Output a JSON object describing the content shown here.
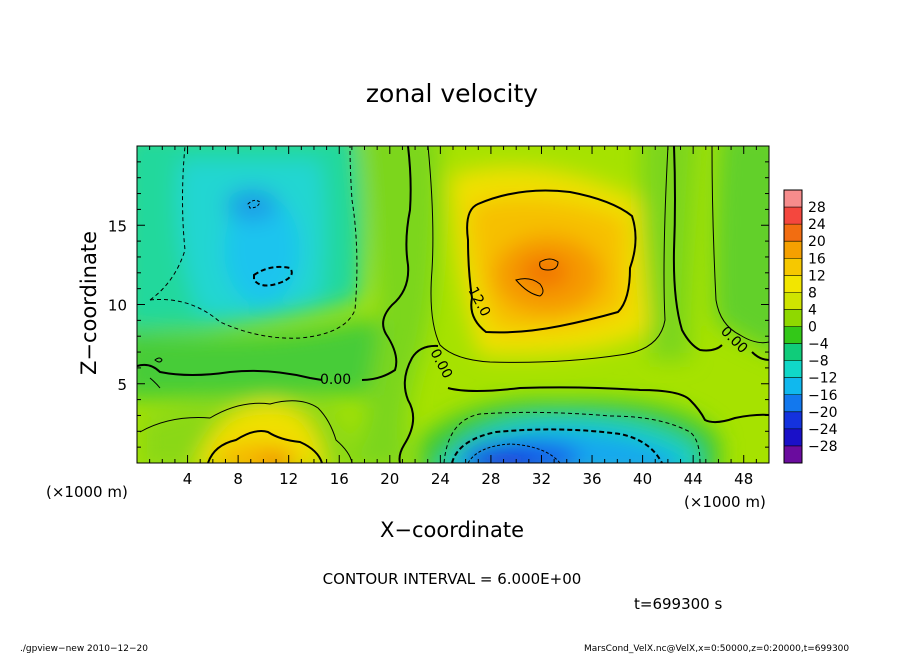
{
  "chart_data": {
    "type": "heatmap",
    "title": "zonal velocity",
    "xlabel": "X−coordinate",
    "ylabel": "Z−coordinate",
    "x_unit_left": "(×1000 m)",
    "x_unit_right": "(×1000 m)",
    "xlim": [
      0,
      50
    ],
    "ylim": [
      0,
      20
    ],
    "x_ticks": [
      "4",
      "8",
      "12",
      "16",
      "20",
      "24",
      "28",
      "32",
      "36",
      "40",
      "44",
      "48"
    ],
    "x_tick_values": [
      4,
      8,
      12,
      16,
      20,
      24,
      28,
      32,
      36,
      40,
      44,
      48
    ],
    "y_ticks": [
      "5",
      "10",
      "15"
    ],
    "y_tick_values": [
      5,
      10,
      15
    ],
    "colorbar": {
      "labels": [
        "28",
        "24",
        "20",
        "16",
        "12",
        "8",
        "4",
        "0",
        "−4",
        "−8",
        "−12",
        "−16",
        "−20",
        "−24",
        "−28"
      ],
      "colors": [
        "#f68c8c",
        "#f4473e",
        "#f26d11",
        "#f5a000",
        "#f6c800",
        "#f2e600",
        "#cfe400",
        "#8fd800",
        "#33c818",
        "#10cc7a",
        "#10d8c8",
        "#10b8ee",
        "#1278ee",
        "#1432de",
        "#1a10c8",
        "#6a0c9e"
      ]
    },
    "contour_interval_text": "CONTOUR INTERVAL = 6.000E+00",
    "contour_labels": [
      "0.00",
      "0.00",
      "0.00",
      "12.0"
    ],
    "time_text": "t=699300 s",
    "footer_left": "./gpview−new  2010−12−20",
    "footer_right": "MarsCond_VelX.nc@VelX,x=0:50000,z=0:20000,t=699300"
  }
}
